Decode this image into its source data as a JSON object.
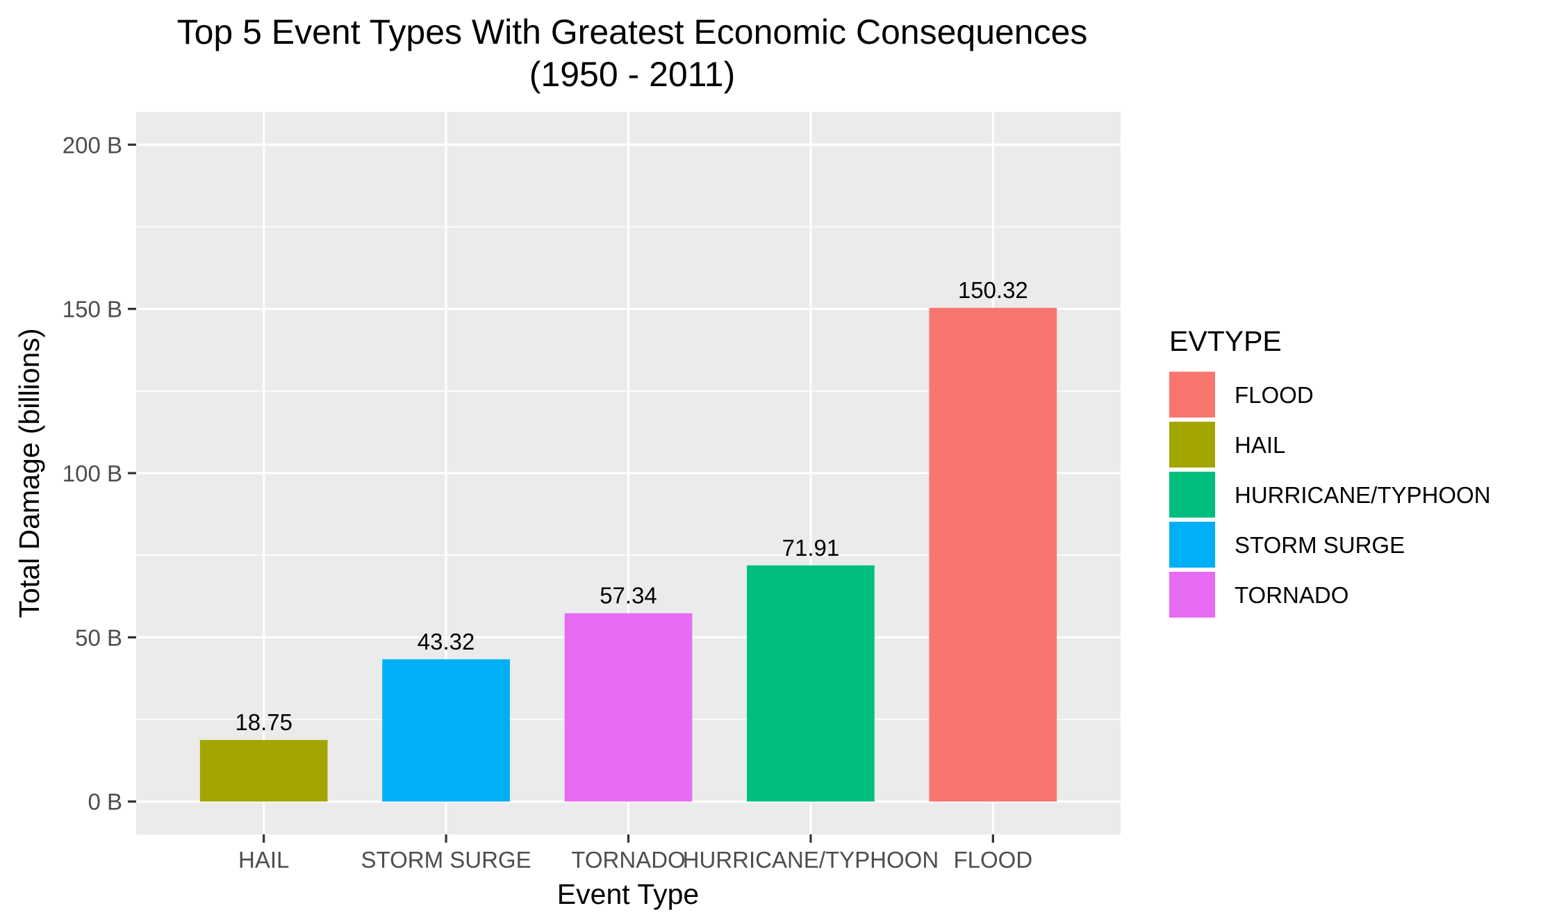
{
  "chart_data": {
    "type": "bar",
    "title": "Top 5 Event Types With Greatest Economic Consequences",
    "subtitle": "(1950 - 2011)",
    "xlabel": "Event Type",
    "ylabel": "Total Damage (billions)",
    "categories": [
      "HAIL",
      "STORM SURGE",
      "TORNADO",
      "HURRICANE/TYPHOON",
      "FLOOD"
    ],
    "values": [
      18.75,
      43.32,
      57.34,
      71.91,
      150.32
    ],
    "data_labels": [
      "18.75",
      "43.32",
      "57.34",
      "71.91",
      "150.32"
    ],
    "bar_colors": [
      "#A3A500",
      "#00B0F6",
      "#E76BF3",
      "#00BF7D",
      "#F8766D"
    ],
    "ylim": [
      -10,
      210
    ],
    "yticks": [
      0,
      50,
      100,
      150,
      200
    ],
    "ytick_labels": [
      "0 B",
      "50 B",
      "100 B",
      "150 B",
      "200 B"
    ],
    "grid": true,
    "panel_background": "#EBEBEB",
    "gridline_color": "#FFFFFF",
    "legend": {
      "title": "EVTYPE",
      "position": "right",
      "entries": [
        {
          "label": "FLOOD",
          "color": "#F8766D"
        },
        {
          "label": "HAIL",
          "color": "#A3A500"
        },
        {
          "label": "HURRICANE/TYPHOON",
          "color": "#00BF7D"
        },
        {
          "label": "STORM SURGE",
          "color": "#00B0F6"
        },
        {
          "label": "TORNADO",
          "color": "#E76BF3"
        }
      ]
    }
  }
}
